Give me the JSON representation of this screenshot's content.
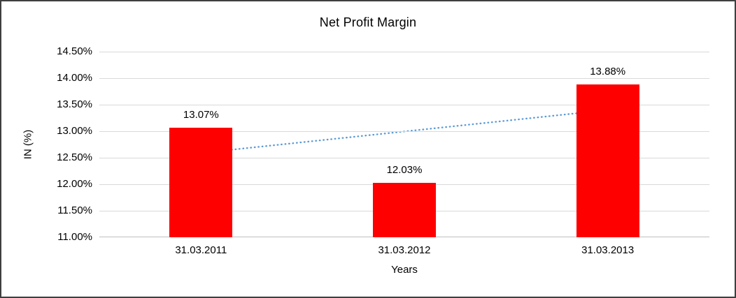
{
  "chart_data": {
    "type": "bar",
    "title": "Net Profit Margin",
    "xlabel": "Years",
    "ylabel": "IN (%)",
    "categories": [
      "31.03.2011",
      "31.03.2012",
      "31.03.2013"
    ],
    "values": [
      13.07,
      12.03,
      13.88
    ],
    "data_labels": [
      "13.07%",
      "12.03%",
      "13.88%"
    ],
    "y_ticks": [
      "14.50%",
      "14.00%",
      "13.50%",
      "13.00%",
      "12.50%",
      "12.00%",
      "11.50%",
      "11.00%"
    ],
    "ylim": [
      11.0,
      14.5
    ],
    "grid": true,
    "legend": false,
    "bar_color": "#ff0000",
    "trendline": {
      "style": "dotted",
      "color": "#5b9bd5",
      "start_value": 12.59,
      "end_value": 13.4
    }
  }
}
